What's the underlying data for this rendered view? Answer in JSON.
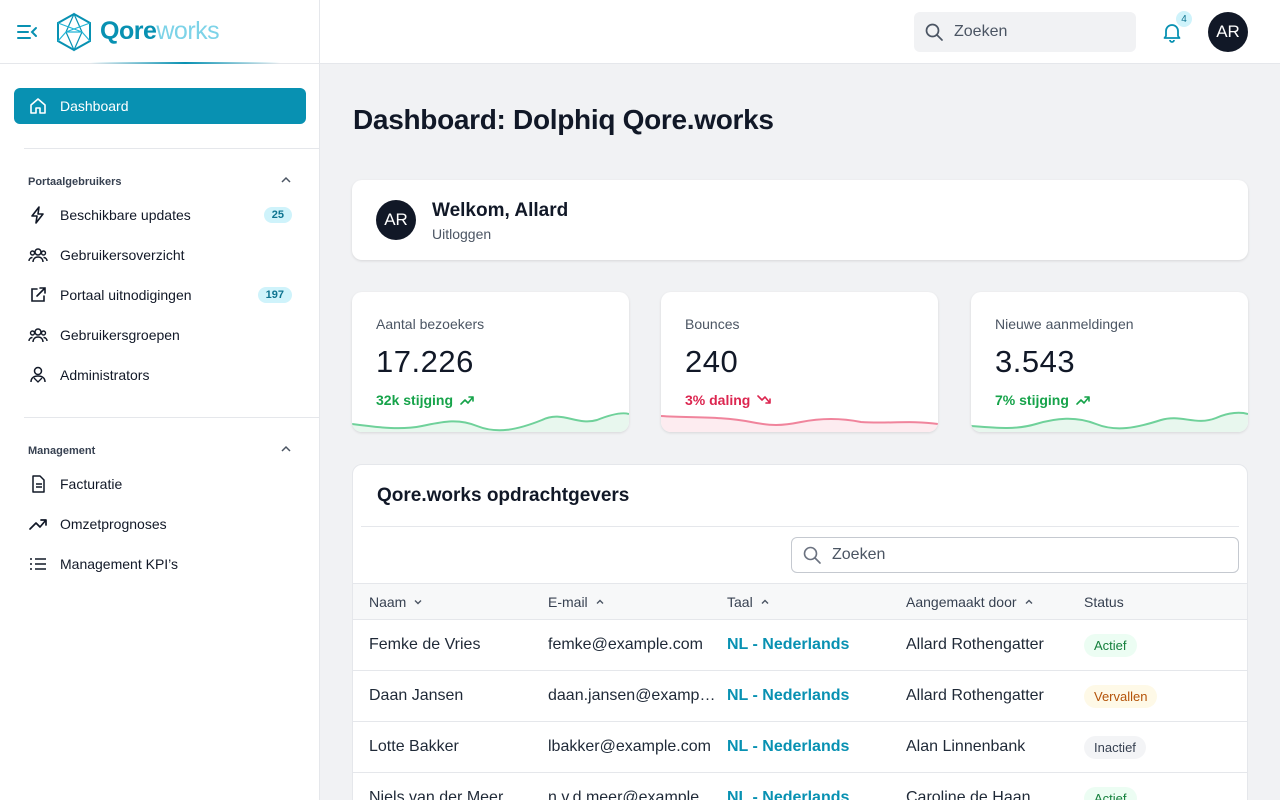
{
  "brand": {
    "part1": "Qore",
    "part2": "works"
  },
  "topbar": {
    "search_placeholder": "Zoeken",
    "notification_count": "4",
    "avatar_initials": "AR"
  },
  "sidebar": {
    "active": {
      "label": "Dashboard"
    },
    "sections": [
      {
        "title": "Portaalgebruikers",
        "items": [
          {
            "label": "Beschikbare updates",
            "badge": "25"
          },
          {
            "label": "Gebruikersoverzicht",
            "badge": ""
          },
          {
            "label": "Portaal uitnodigingen",
            "badge": "197"
          },
          {
            "label": "Gebruikersgroepen",
            "badge": ""
          },
          {
            "label": "Administrators",
            "badge": ""
          }
        ]
      },
      {
        "title": "Management",
        "items": [
          {
            "label": "Facturatie"
          },
          {
            "label": "Omzetprognoses"
          },
          {
            "label": "Management KPI’s"
          }
        ]
      }
    ]
  },
  "main": {
    "title": "Dashboard: Dolphiq Qore.works",
    "welcome": {
      "initials": "AR",
      "greeting": "Welkom, Allard",
      "logout": "Uitloggen"
    },
    "stats": [
      {
        "label": "Aantal bezoekers",
        "value": "17.226",
        "trend": "32k stijging",
        "direction": "up"
      },
      {
        "label": "Bounces",
        "value": "240",
        "trend": "3% daling",
        "direction": "down"
      },
      {
        "label": "Nieuwe aanmeldingen",
        "value": "3.543",
        "trend": "7% stijging",
        "direction": "up"
      }
    ],
    "table": {
      "title": "Qore.works opdrachtgevers",
      "search_placeholder": "Zoeken",
      "columns": [
        "Naam",
        "E-mail",
        "Taal",
        "Aangemaakt door",
        "Status"
      ],
      "rows": [
        {
          "name": "Femke de Vries",
          "email": "femke@example.com",
          "lang": "NL - Nederlands",
          "creator": "Allard Rothengatter",
          "status": "Actief"
        },
        {
          "name": "Daan Jansen",
          "email": "daan.jansen@example.com",
          "lang": "NL - Nederlands",
          "creator": "Allard Rothengatter",
          "status": "Vervallen"
        },
        {
          "name": "Lotte Bakker",
          "email": "lbakker@example.com",
          "lang": "NL - Nederlands",
          "creator": "Alan Linnenbank",
          "status": "Inactief"
        },
        {
          "name": "Niels van der Meer",
          "email": "n.v.d.meer@example.com",
          "lang": "NL - Nederlands",
          "creator": "Caroline de Haan",
          "status": "Actief"
        }
      ]
    }
  },
  "colors": {
    "accent": "#0891b2",
    "up": "#16a34a",
    "down": "#dc2650"
  }
}
